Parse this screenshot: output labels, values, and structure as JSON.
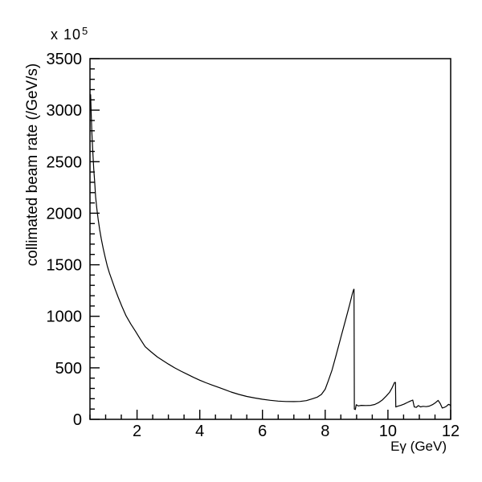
{
  "figure": {
    "background_color": "#ffffff",
    "line_color": "#000000"
  },
  "chart_data": {
    "type": "line",
    "xlabel": "Eγ (GeV)",
    "ylabel": "collimated beam rate (/GeV/s)",
    "y_multiplier": {
      "base": "x 10",
      "exponent": "5"
    },
    "xlim": [
      0.5,
      12
    ],
    "ylim": [
      0,
      3500
    ],
    "x_major_ticks": [
      2,
      4,
      6,
      8,
      10,
      12
    ],
    "x_minor_step": 0.5,
    "y_major_ticks": [
      0,
      500,
      1000,
      1500,
      2000,
      2500,
      3000,
      3500
    ],
    "y_minor_step": 100,
    "grid": false,
    "legend_position": "none",
    "points": [
      [
        0.52,
        3150
      ],
      [
        0.54,
        2950
      ],
      [
        0.56,
        2790
      ],
      [
        0.59,
        2600
      ],
      [
        0.62,
        2430
      ],
      [
        0.65,
        2300
      ],
      [
        0.68,
        2160
      ],
      [
        0.72,
        2040
      ],
      [
        0.76,
        1940
      ],
      [
        0.81,
        1840
      ],
      [
        0.86,
        1750
      ],
      [
        0.92,
        1660
      ],
      [
        0.98,
        1580
      ],
      [
        1.05,
        1490
      ],
      [
        1.12,
        1420
      ],
      [
        1.21,
        1343
      ],
      [
        1.3,
        1265
      ],
      [
        1.4,
        1185
      ],
      [
        1.52,
        1095
      ],
      [
        1.65,
        1005
      ],
      [
        1.8,
        925
      ],
      [
        1.95,
        855
      ],
      [
        2.1,
        780
      ],
      [
        2.26,
        705
      ],
      [
        2.45,
        655
      ],
      [
        2.65,
        605
      ],
      [
        2.85,
        565
      ],
      [
        3.0,
        536
      ],
      [
        3.2,
        500
      ],
      [
        3.4,
        468
      ],
      [
        3.6,
        438
      ],
      [
        3.8,
        408
      ],
      [
        4.0,
        380
      ],
      [
        4.2,
        355
      ],
      [
        4.4,
        332
      ],
      [
        4.6,
        310
      ],
      [
        4.8,
        288
      ],
      [
        5.0,
        265
      ],
      [
        5.25,
        242
      ],
      [
        5.5,
        222
      ],
      [
        5.75,
        207
      ],
      [
        6.0,
        195
      ],
      [
        6.25,
        185
      ],
      [
        6.5,
        177
      ],
      [
        6.75,
        173
      ],
      [
        7.0,
        172
      ],
      [
        7.2,
        174
      ],
      [
        7.4,
        182
      ],
      [
        7.6,
        200
      ],
      [
        7.75,
        216
      ],
      [
        7.88,
        242
      ],
      [
        8.0,
        292
      ],
      [
        8.1,
        375
      ],
      [
        8.22,
        480
      ],
      [
        8.35,
        625
      ],
      [
        8.5,
        795
      ],
      [
        8.65,
        965
      ],
      [
        8.78,
        1115
      ],
      [
        8.87,
        1225
      ],
      [
        8.91,
        1262
      ],
      [
        8.92,
        1262
      ],
      [
        8.93,
        100
      ],
      [
        8.96,
        95
      ],
      [
        8.99,
        142
      ],
      [
        9.05,
        130
      ],
      [
        9.15,
        136
      ],
      [
        9.3,
        134
      ],
      [
        9.45,
        136
      ],
      [
        9.58,
        144
      ],
      [
        9.7,
        162
      ],
      [
        9.83,
        190
      ],
      [
        9.95,
        228
      ],
      [
        10.05,
        262
      ],
      [
        10.13,
        305
      ],
      [
        10.21,
        358
      ],
      [
        10.24,
        358
      ],
      [
        10.25,
        120
      ],
      [
        10.32,
        128
      ],
      [
        10.42,
        137
      ],
      [
        10.52,
        149
      ],
      [
        10.62,
        164
      ],
      [
        10.72,
        178
      ],
      [
        10.79,
        187
      ],
      [
        10.84,
        120
      ],
      [
        10.9,
        116
      ],
      [
        10.97,
        133
      ],
      [
        11.04,
        121
      ],
      [
        11.12,
        126
      ],
      [
        11.22,
        123
      ],
      [
        11.32,
        129
      ],
      [
        11.42,
        143
      ],
      [
        11.52,
        163
      ],
      [
        11.6,
        184
      ],
      [
        11.67,
        152
      ],
      [
        11.73,
        110
      ],
      [
        11.8,
        116
      ],
      [
        11.87,
        128
      ],
      [
        11.93,
        146
      ],
      [
        11.97,
        141
      ],
      [
        12.0,
        131
      ]
    ]
  }
}
